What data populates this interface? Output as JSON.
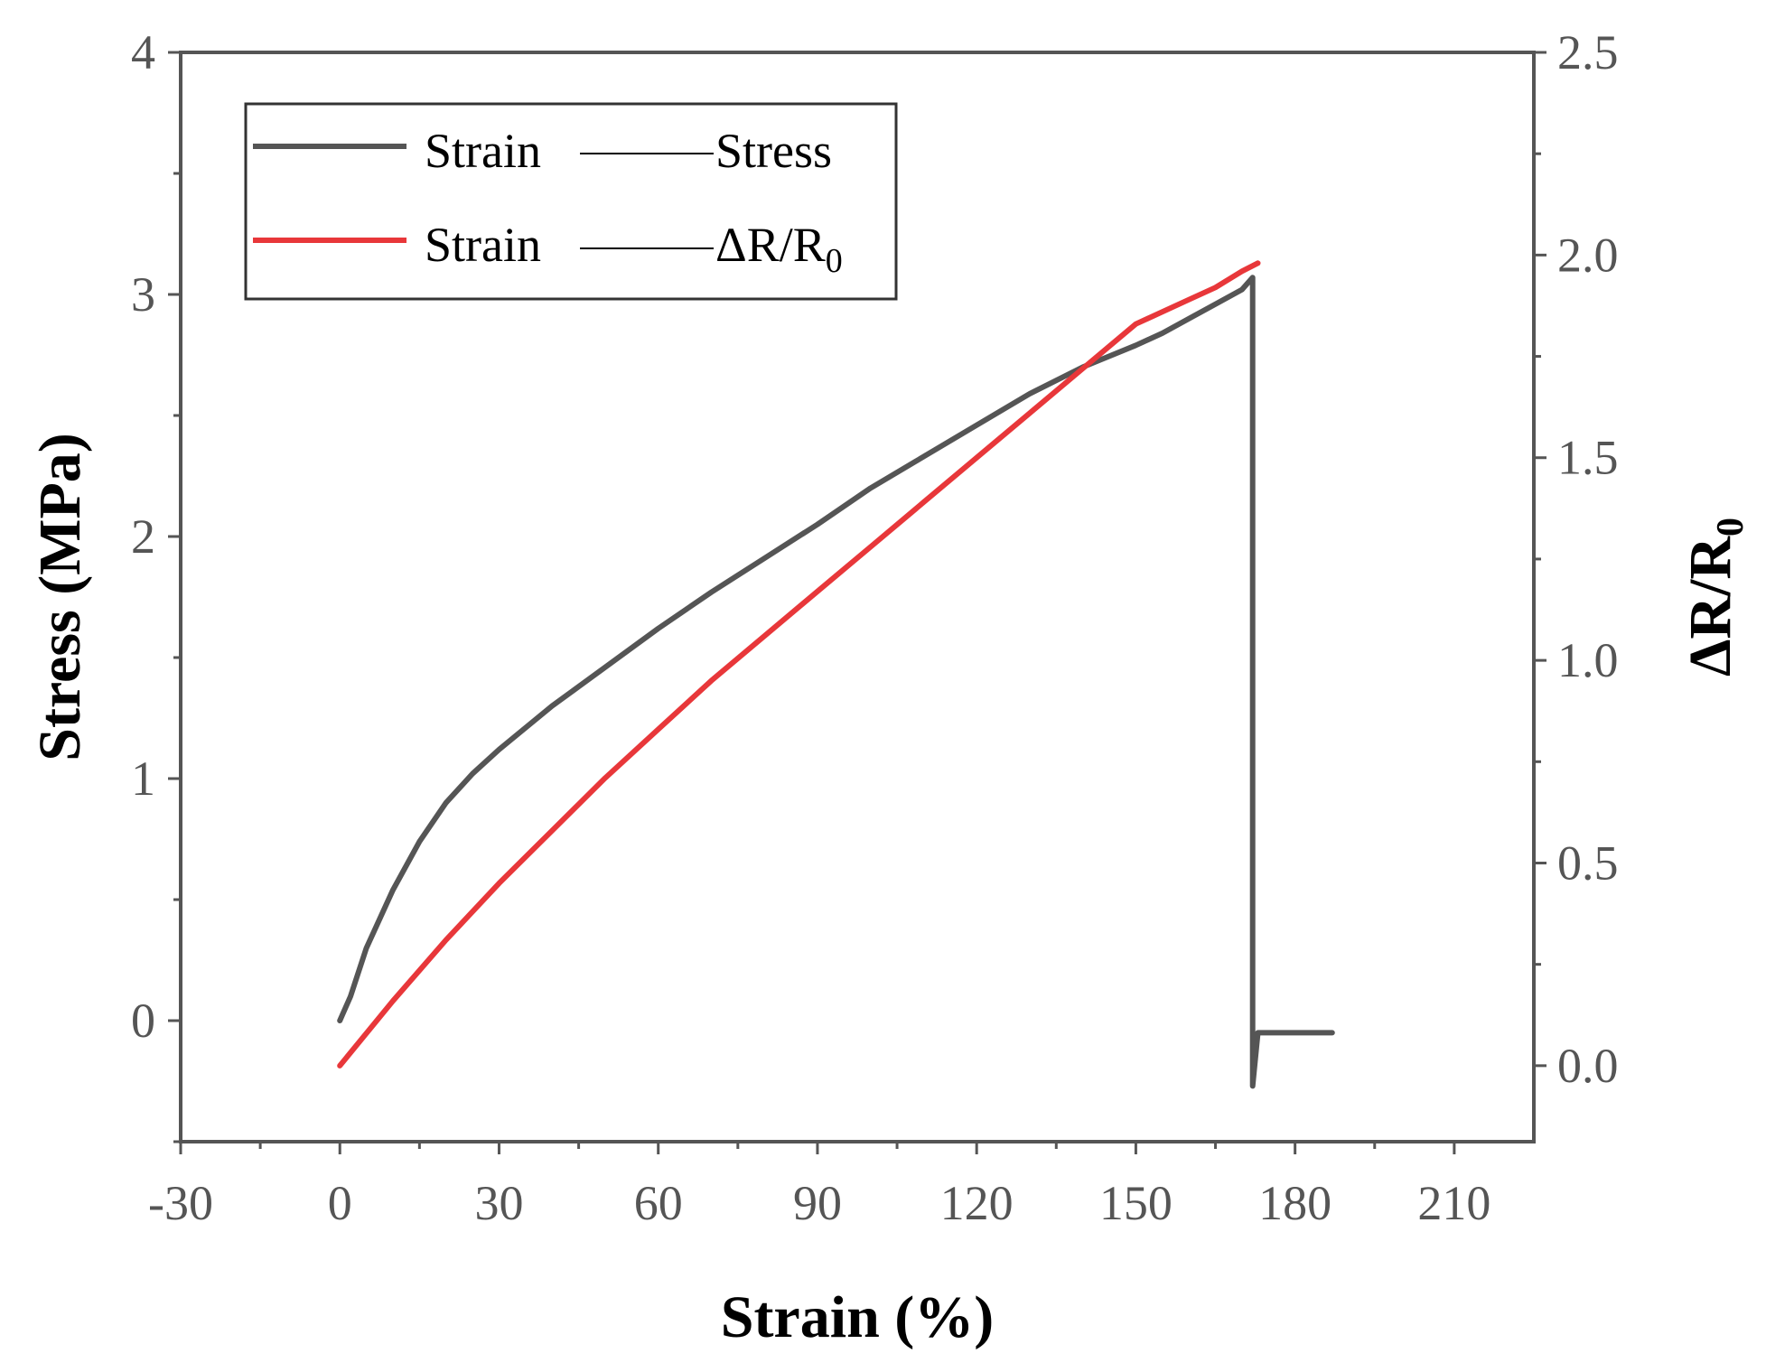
{
  "chart_data": {
    "type": "line",
    "xlabel": "Strain (%)",
    "ylabel_left": "Stress (MPa)",
    "ylabel_right": "ΔR/R",
    "ylabel_right_sub": "0",
    "xlim": [
      -30,
      225
    ],
    "ylim_left": [
      -0.5,
      4
    ],
    "ylim_right": [
      -0.1875,
      2.5
    ],
    "x_ticks": [
      -30,
      0,
      30,
      60,
      90,
      120,
      150,
      180,
      210
    ],
    "x_tick_labels": [
      "-30",
      "0",
      "30",
      "60",
      "90",
      "120",
      "150",
      "180",
      "210"
    ],
    "y_left_ticks": [
      0,
      1,
      2,
      3,
      4
    ],
    "y_left_tick_labels": [
      "0",
      "1",
      "2",
      "3",
      "4"
    ],
    "y_right_ticks": [
      0,
      0.5,
      1.0,
      1.5,
      2.0,
      2.5
    ],
    "y_right_tick_labels": [
      "0.0",
      "0.5",
      "1.0",
      "1.5",
      "2.0",
      "2.5"
    ],
    "legend": {
      "position": "top-left",
      "entries": [
        {
          "left": "Strain",
          "right": "Stress",
          "sub": ""
        },
        {
          "left": "Strain",
          "right": "ΔR/R",
          "sub": "0"
        }
      ]
    },
    "series": [
      {
        "name": "Strain—Stress",
        "axis": "left",
        "color": "#555555",
        "x": [
          0,
          2,
          5,
          10,
          15,
          20,
          25,
          30,
          40,
          50,
          60,
          70,
          80,
          90,
          100,
          110,
          120,
          130,
          140,
          150,
          155,
          160,
          165,
          170,
          172,
          172,
          172,
          173,
          178,
          185,
          187
        ],
        "y": [
          0,
          0.1,
          0.3,
          0.54,
          0.74,
          0.9,
          1.02,
          1.12,
          1.3,
          1.46,
          1.62,
          1.77,
          1.91,
          2.05,
          2.2,
          2.33,
          2.46,
          2.59,
          2.7,
          2.79,
          2.84,
          2.9,
          2.96,
          3.02,
          3.07,
          0.2,
          -0.27,
          -0.05,
          -0.05,
          -0.05,
          -0.05
        ]
      },
      {
        "name": "Strain—ΔR/R0",
        "axis": "right",
        "color": "#e8373a",
        "x": [
          0,
          5,
          10,
          20,
          30,
          40,
          50,
          60,
          70,
          80,
          90,
          100,
          110,
          120,
          130,
          140,
          150,
          160,
          165,
          170,
          173
        ],
        "y": [
          0,
          0.08,
          0.16,
          0.31,
          0.45,
          0.58,
          0.71,
          0.83,
          0.95,
          1.06,
          1.17,
          1.28,
          1.39,
          1.5,
          1.61,
          1.72,
          1.83,
          1.89,
          1.92,
          1.96,
          1.98
        ]
      }
    ]
  }
}
